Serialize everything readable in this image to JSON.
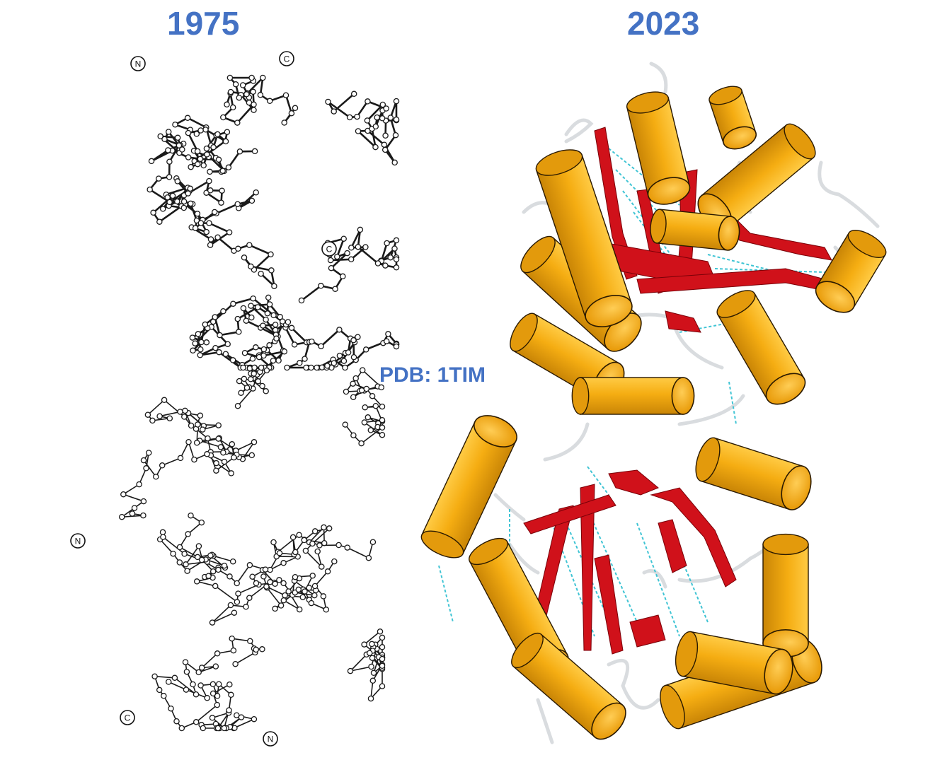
{
  "left_panel": {
    "year": "1975",
    "terminus_labels": [
      "N",
      "C",
      "C",
      "N",
      "C",
      "N"
    ]
  },
  "right_panel": {
    "year": "2023"
  },
  "pdb_label": "PDB: 1TIM",
  "colors": {
    "title": "#4472C4",
    "helix": "#F7B21B",
    "helix_edge": "#2b1a00",
    "sheet": "#D0111A",
    "coil": "#E8EAEC",
    "hbond": "#3FC4D4",
    "trace": "#1a1a1a"
  }
}
